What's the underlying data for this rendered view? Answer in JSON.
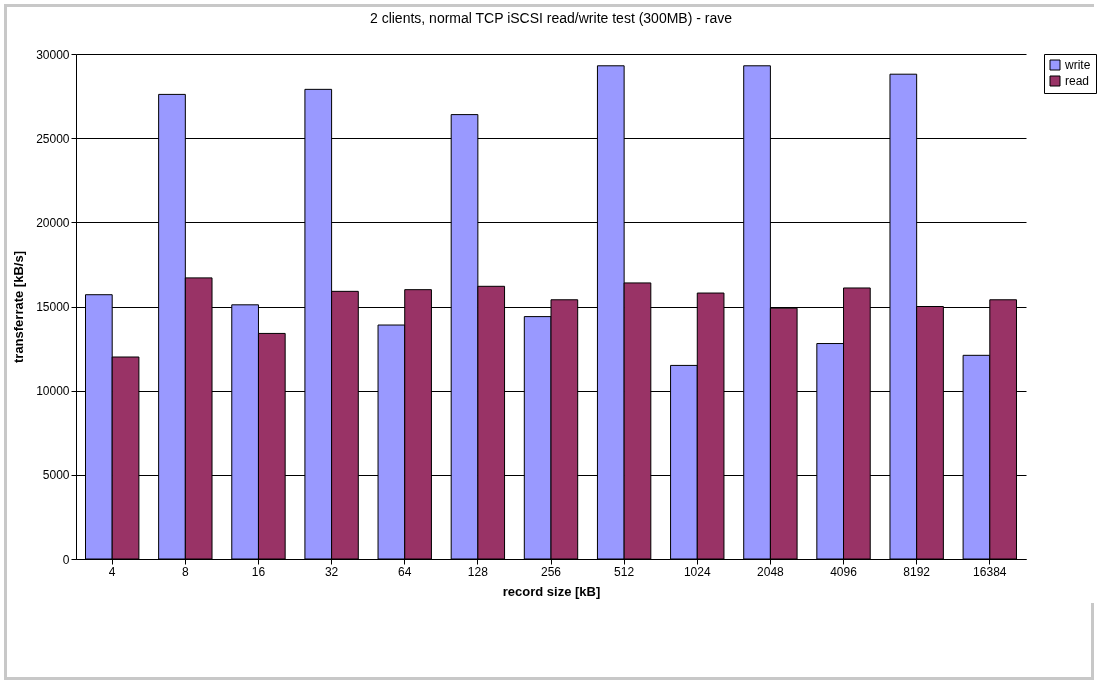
{
  "chart_data": {
    "type": "bar",
    "title": "2 clients, normal TCP iSCSI read/write test (300MB) - rave",
    "xlabel": "record size [kB]",
    "ylabel": "transferrate [kB/s]",
    "categories": [
      "4",
      "8",
      "16",
      "32",
      "64",
      "128",
      "256",
      "512",
      "1024",
      "2048",
      "4096",
      "8192",
      "16384"
    ],
    "series": [
      {
        "name": "write",
        "color": "#9999ff",
        "values": [
          15700,
          27600,
          15100,
          27900,
          13900,
          26400,
          14400,
          29300,
          11500,
          29300,
          12800,
          28800,
          12100
        ]
      },
      {
        "name": "read",
        "color": "#993366",
        "values": [
          12000,
          16700,
          13400,
          15900,
          16000,
          16200,
          15400,
          16400,
          15800,
          14900,
          16100,
          15000,
          15400
        ]
      }
    ],
    "ylim": [
      0,
      30000
    ],
    "yticks": [
      0,
      5000,
      10000,
      15000,
      20000,
      25000,
      30000
    ],
    "grid": "y",
    "legend": "right"
  }
}
